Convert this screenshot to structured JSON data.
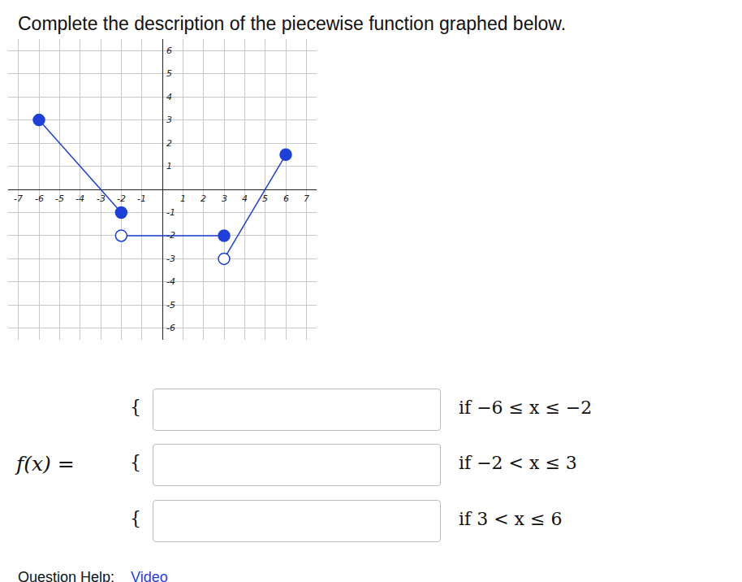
{
  "header": {
    "title": "Complete the description of the piecewise function graphed below."
  },
  "chart_data": {
    "type": "line",
    "xlim": [
      -7.5,
      7.5
    ],
    "ylim": [
      -6.5,
      6.5
    ],
    "xticks": [
      -7,
      -6,
      -5,
      -4,
      -3,
      -2,
      -1,
      1,
      2,
      3,
      4,
      5,
      6,
      7
    ],
    "yticks": [
      -6,
      -5,
      -4,
      -3,
      -2,
      -1,
      1,
      2,
      3,
      4,
      5,
      6
    ],
    "grid": true,
    "series": [
      {
        "type": "line",
        "color": "#1f3fd9",
        "x": [
          -6,
          -2
        ],
        "values": [
          3,
          -1
        ]
      },
      {
        "type": "line",
        "color": "#1f3fd9",
        "x": [
          -2,
          3
        ],
        "values": [
          -2,
          -2
        ]
      },
      {
        "type": "line",
        "color": "#1f3fd9",
        "x": [
          3,
          6
        ],
        "values": [
          -3,
          1.5
        ]
      },
      {
        "type": "scatter",
        "marker": "filled",
        "color": "#1f3fd9",
        "x": [
          -6,
          -2,
          3,
          6
        ],
        "values": [
          3,
          -1,
          -2,
          1.5
        ]
      },
      {
        "type": "scatter",
        "marker": "open",
        "color": "#1f3fd9",
        "x": [
          -2,
          3
        ],
        "values": [
          -2,
          -3
        ]
      }
    ]
  },
  "form": {
    "lhs": "f(x) =",
    "brace": "{",
    "rows": [
      "if −6 ≤ x ≤ −2",
      "if −2 < x ≤ 3",
      "if 3 < x ≤ 6"
    ]
  },
  "help": {
    "label": "Question Help:",
    "link": "Video"
  }
}
